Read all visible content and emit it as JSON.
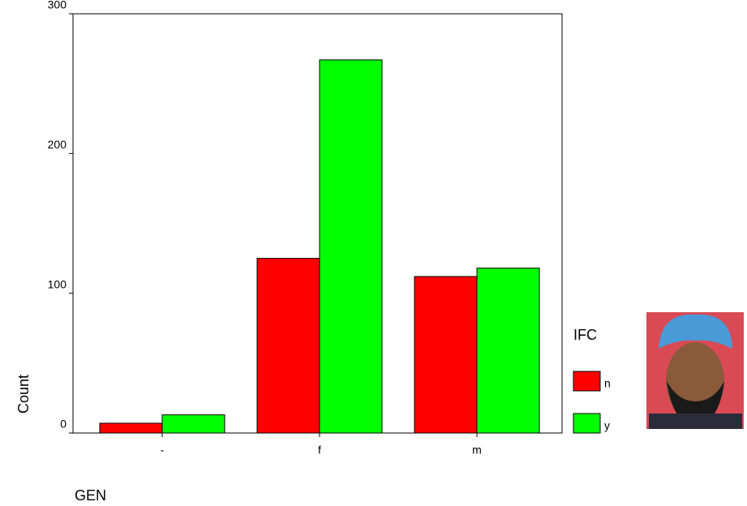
{
  "chart_data": {
    "type": "bar",
    "categories": [
      "-",
      "f",
      "m"
    ],
    "series": [
      {
        "name": "n",
        "color": "#ff0000",
        "values": [
          7,
          125,
          112
        ]
      },
      {
        "name": "y",
        "color": "#00ff00",
        "values": [
          13,
          267,
          118
        ]
      }
    ],
    "ylim": [
      0,
      300
    ],
    "yticks": [
      0,
      100,
      200,
      300
    ],
    "y_label": "Count",
    "x_label": "GEN",
    "legend_title": "IFC",
    "legend_position": "right",
    "grid": false
  }
}
